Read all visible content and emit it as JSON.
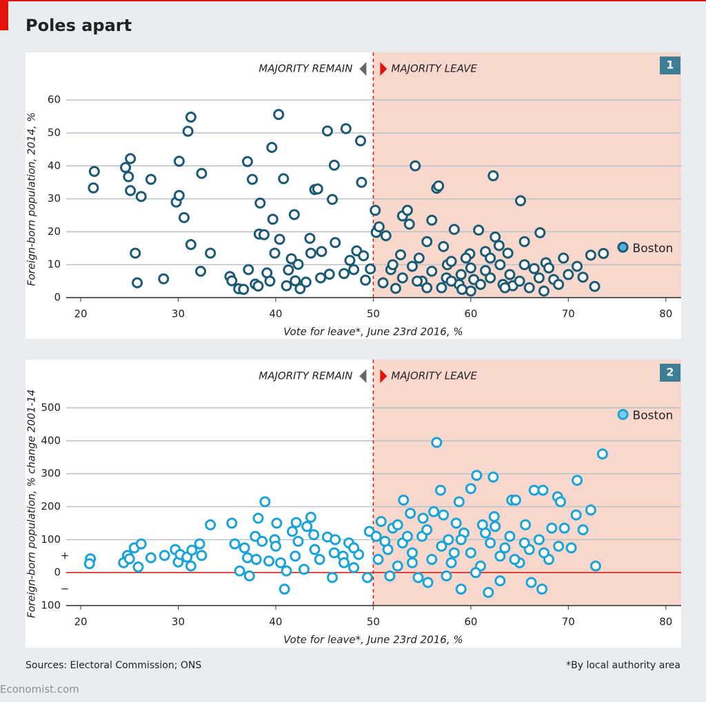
{
  "header": {
    "title": "Poles apart"
  },
  "footer": {
    "sources": "Sources: Electoral Commission; ONS",
    "note": "*By local authority area",
    "brand": "Economist.com"
  },
  "chart_data": [
    {
      "type": "scatter",
      "panel_number": "1",
      "remain_label": "MAJORITY REMAIN",
      "leave_label": "MAJORITY LEAVE",
      "divider": 50,
      "xlabel": "Vote for leave*, June 23rd 2016, %",
      "ylabel": "Foreign-born population, 2014, %",
      "xlim": [
        18.5,
        81.5
      ],
      "xticks": [
        20,
        30,
        40,
        50,
        60,
        70,
        80
      ],
      "ylim": [
        0,
        64
      ],
      "yticks": [
        0,
        10,
        20,
        30,
        40,
        50,
        60
      ],
      "grid": true,
      "series": [
        {
          "color": "#1b5a72",
          "fill": "#ffffff",
          "x": [
            21.4,
            21.3,
            24.6,
            25.1,
            24.9,
            25.1,
            26.2,
            27.2,
            25.6,
            25.8,
            28.5,
            30.1,
            29.8,
            30.1,
            30.6,
            31,
            31.3,
            31.3,
            32.3,
            32.4,
            33.3,
            35.3,
            35.5,
            36.2,
            36.7,
            37.1,
            37.2,
            37.6,
            37.9,
            38.2,
            38.3,
            38.4,
            38.8,
            39.1,
            39.4,
            39.6,
            39.7,
            39.9,
            40.3,
            40.4,
            40.8,
            41.1,
            41.3,
            41.6,
            41.9,
            42,
            42.3,
            42.5,
            43.1,
            43.5,
            43.6,
            44,
            44.3,
            44.7,
            44.6,
            45.3,
            45.5,
            45.8,
            46,
            46.1,
            47,
            47.2,
            47.6,
            48,
            48.3,
            48.7,
            48.8,
            49,
            49.2,
            49.7,
            50.2,
            50.3,
            50.6,
            51,
            51.3,
            51.8,
            52.3,
            53,
            53.5,
            53.7,
            54,
            54.3,
            54.7,
            55.5,
            56,
            56.5,
            56.7,
            57.2,
            57.6,
            58.3,
            58.8,
            59.1,
            59.9,
            60.3,
            60.8,
            61.5,
            62.3,
            62.5,
            62.9,
            63.3,
            63.8,
            64.3,
            65.1,
            65.5,
            66.5,
            67.1,
            67.7,
            68.5,
            69.5,
            70.9,
            71.5,
            72.3,
            72.7,
            73.6,
            52,
            53,
            55,
            56,
            57,
            58,
            59,
            60,
            61,
            62,
            63,
            64,
            65,
            66,
            67,
            68,
            69,
            70,
            55.5,
            57.5,
            59.5,
            61.5,
            63.5,
            65.5,
            67.5,
            52.8,
            54.5,
            58,
            60,
            62
          ],
          "values": [
            38.3,
            33.3,
            39.5,
            42.2,
            36.7,
            32.5,
            30.7,
            35.9,
            13.5,
            4.5,
            5.7,
            41.4,
            29,
            31,
            24.3,
            50.5,
            54.8,
            16.1,
            8,
            37.7,
            13.5,
            6.4,
            5.1,
            2.7,
            2.5,
            41.3,
            8.5,
            35.9,
            4.1,
            3.5,
            19.3,
            28.7,
            19.1,
            7.5,
            5,
            45.6,
            23.8,
            13.5,
            55.6,
            17.7,
            36.1,
            3.6,
            8.4,
            11.8,
            25.2,
            5.1,
            10.1,
            2.7,
            4.7,
            18,
            13.5,
            32.8,
            33,
            14,
            6,
            50.6,
            7.1,
            29.8,
            40.2,
            16.7,
            7.3,
            51.3,
            11.3,
            8.5,
            14.2,
            47.6,
            35,
            12.7,
            5.3,
            8.7,
            26.5,
            19.8,
            21.5,
            4.5,
            18.8,
            8.5,
            2.8,
            24.8,
            26.5,
            22.3,
            9.5,
            40,
            12,
            17,
            23.5,
            33.2,
            33.9,
            15.5,
            10,
            20.7,
            4,
            2.5,
            13.3,
            5.5,
            20.5,
            8.2,
            37,
            18.4,
            15.8,
            4,
            13.5,
            3.6,
            29.4,
            17,
            8.8,
            19.7,
            10.6,
            5.5,
            12,
            9.5,
            6.2,
            12.9,
            3.4,
            13.4,
            10,
            6,
            5,
            8,
            3,
            11,
            7,
            9,
            4,
            6,
            10,
            7,
            5,
            3,
            6,
            9,
            4,
            7,
            3,
            6,
            12,
            14,
            3,
            10,
            2,
            13,
            5,
            5,
            2,
            12
          ]
        },
        {
          "color": "#1b5a72",
          "fill": "#4fb3d9",
          "label": "Boston",
          "x": [
            75.6
          ],
          "values": [
            15.3
          ]
        }
      ]
    },
    {
      "type": "scatter",
      "panel_number": "2",
      "remain_label": "MAJORITY REMAIN",
      "leave_label": "MAJORITY LEAVE",
      "divider": 50,
      "xlabel": "Vote for leave*, June 23rd 2016, %",
      "ylabel": "Foreign-born population, % change 2001-14",
      "xlim": [
        18.5,
        81.5
      ],
      "xticks": [
        20,
        30,
        40,
        50,
        60,
        70,
        80
      ],
      "ylim": [
        -100,
        560
      ],
      "yticks": [
        {
          "value": -100,
          "label": "100"
        },
        0,
        100,
        200,
        300,
        400,
        500
      ],
      "grid": true,
      "zero_line_color": "#e3120b",
      "sign_labels": [
        "+",
        "−"
      ],
      "series": [
        {
          "color": "#1ba3d8",
          "fill": "#ffffff",
          "x": [
            21,
            20.9,
            24.4,
            24.8,
            25,
            25.5,
            25.9,
            26.2,
            27.2,
            28.6,
            29.7,
            30,
            30.2,
            30.9,
            31.3,
            31.4,
            32.2,
            32.4,
            33.3,
            35.5,
            35.8,
            36.3,
            36.8,
            37.1,
            37.3,
            37.9,
            38.2,
            38.6,
            38.9,
            39.3,
            39.9,
            40.1,
            40.5,
            40.9,
            41.1,
            41.7,
            42.1,
            42.3,
            42.9,
            43.2,
            43.6,
            43.9,
            44.5,
            45.3,
            45.8,
            46.1,
            46.9,
            47.5,
            48,
            48.5,
            49.4,
            49.6,
            50.3,
            50.8,
            51.2,
            51.7,
            52,
            52.5,
            53.1,
            53.8,
            54,
            54.6,
            55.1,
            55.6,
            56.2,
            56.5,
            56.9,
            57.2,
            57.7,
            58.3,
            58.8,
            59,
            59.3,
            60,
            60.6,
            61.2,
            61.8,
            62.3,
            62.4,
            63,
            63.5,
            64.2,
            64.6,
            65.6,
            66.2,
            66.5,
            67.3,
            67.4,
            68.3,
            68.9,
            69.2,
            69.6,
            70.3,
            70.8,
            70.9,
            71.5,
            72.3,
            72.8,
            73.5,
            50.5,
            51.5,
            52.5,
            53,
            54,
            55,
            56,
            57,
            58,
            59,
            60,
            61,
            62,
            63,
            64,
            65,
            66,
            67,
            68,
            69,
            55.5,
            58.5,
            61.5,
            64.5,
            67.5,
            60.5,
            57.5,
            53.5,
            62.5,
            65.5,
            44,
            46,
            42,
            40,
            38,
            48,
            47
          ],
          "values": [
            42,
            27,
            30,
            52,
            42,
            75,
            17,
            87,
            45,
            52,
            70,
            32,
            55,
            47,
            20,
            68,
            87,
            52,
            145,
            150,
            87,
            5,
            75,
            45,
            -10,
            110,
            165,
            95,
            215,
            35,
            100,
            150,
            30,
            -50,
            5,
            125,
            152,
            95,
            10,
            140,
            168,
            115,
            40,
            108,
            -15,
            100,
            50,
            90,
            15,
            55,
            -15,
            125,
            110,
            155,
            95,
            -10,
            135,
            145,
            220,
            180,
            30,
            -15,
            165,
            -30,
            185,
            395,
            250,
            175,
            100,
            60,
            215,
            -50,
            120,
            255,
            295,
            145,
            -60,
            290,
            170,
            -25,
            75,
            220,
            220,
            145,
            -30,
            250,
            -50,
            250,
            135,
            230,
            215,
            135,
            75,
            175,
            280,
            130,
            190,
            20,
            360,
            40,
            70,
            20,
            90,
            60,
            110,
            40,
            80,
            30,
            100,
            60,
            20,
            90,
            50,
            110,
            30,
            70,
            100,
            40,
            80,
            130,
            150,
            120,
            40,
            60,
            0,
            -10,
            110,
            140,
            90,
            70,
            60,
            50,
            80,
            40,
            75,
            30
          ]
        },
        {
          "color": "#1ba3d8",
          "fill": "#7dcdee",
          "label": "Boston",
          "x": [
            75.6
          ],
          "values": [
            480
          ]
        }
      ]
    }
  ]
}
